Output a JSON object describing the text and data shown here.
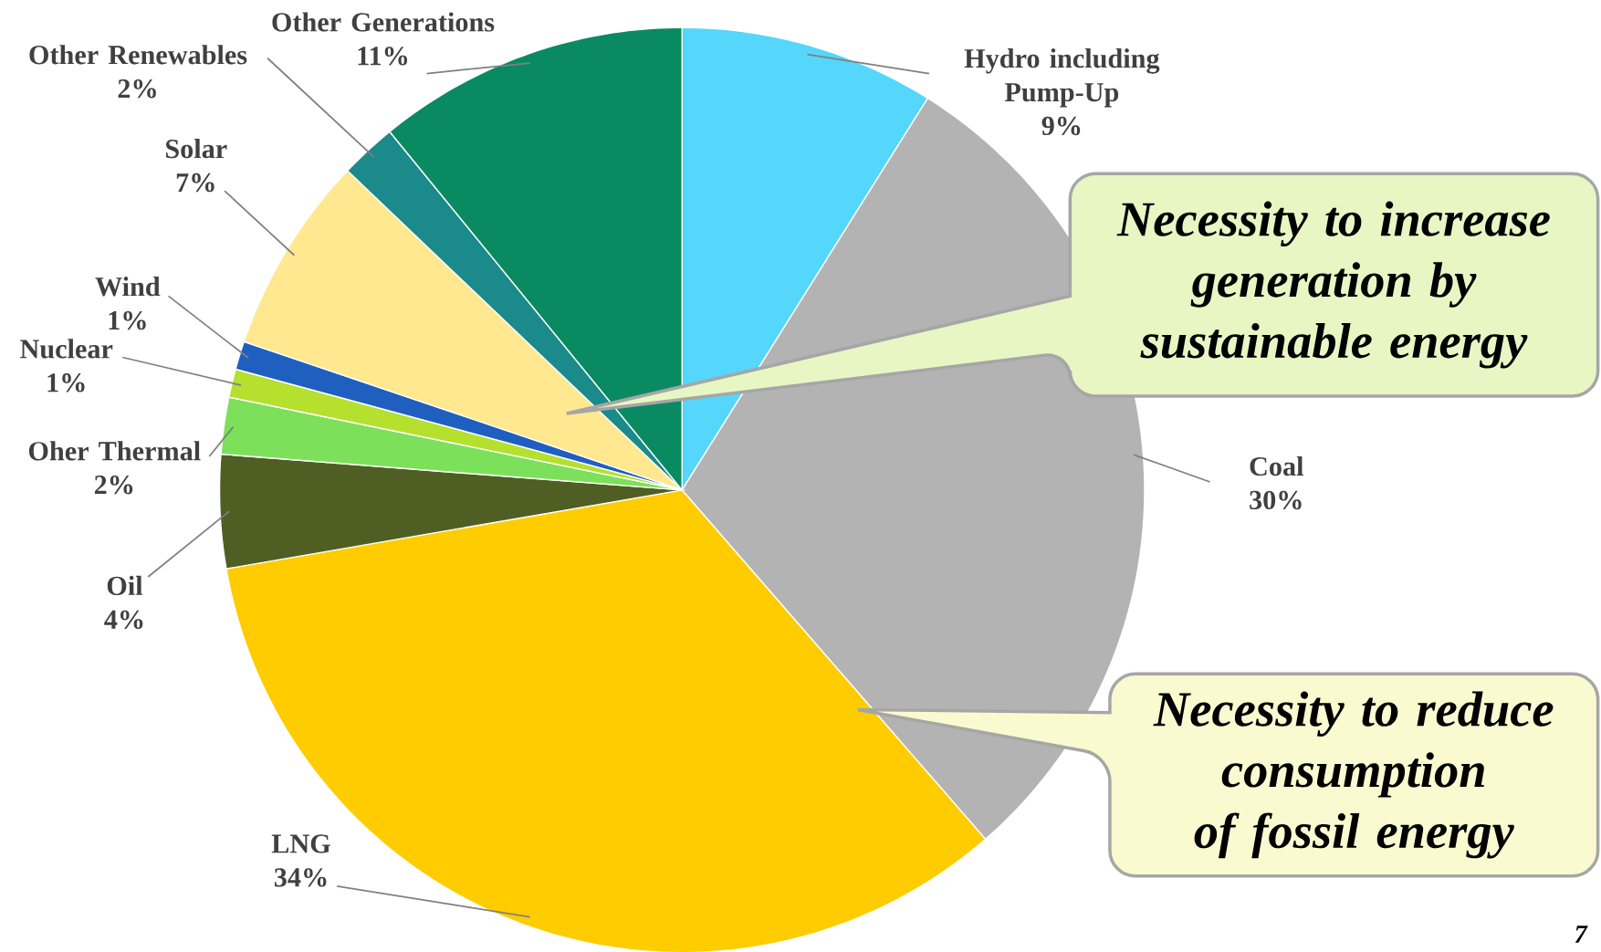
{
  "chart_data": {
    "type": "pie",
    "categories": [
      "Hydro including Pump-Up",
      "Coal",
      "LNG",
      "Oil",
      "Oher Thermal",
      "Nuclear",
      "Wind",
      "Solar",
      "Other Renewables",
      "Other Generations"
    ],
    "values": [
      9,
      30,
      34,
      4,
      2,
      1,
      1,
      7,
      2,
      11
    ],
    "value_labels": [
      "9%",
      "30%",
      "34%",
      "4%",
      "2%",
      "1%",
      "1%",
      "7%",
      "2%",
      "11%"
    ],
    "colors": [
      "#55d6fb",
      "#b3b3b3",
      "#ffcc00",
      "#4f5f23",
      "#7de05a",
      "#b5e02e",
      "#1f5fbf",
      "#ffe88f",
      "#1a8a8a",
      "#0a8a60"
    ],
    "annotations": [
      "Necessity to increase generation by sustainable energy",
      "Necessity to reduce consumption of fossil energy",
      "7"
    ]
  }
}
